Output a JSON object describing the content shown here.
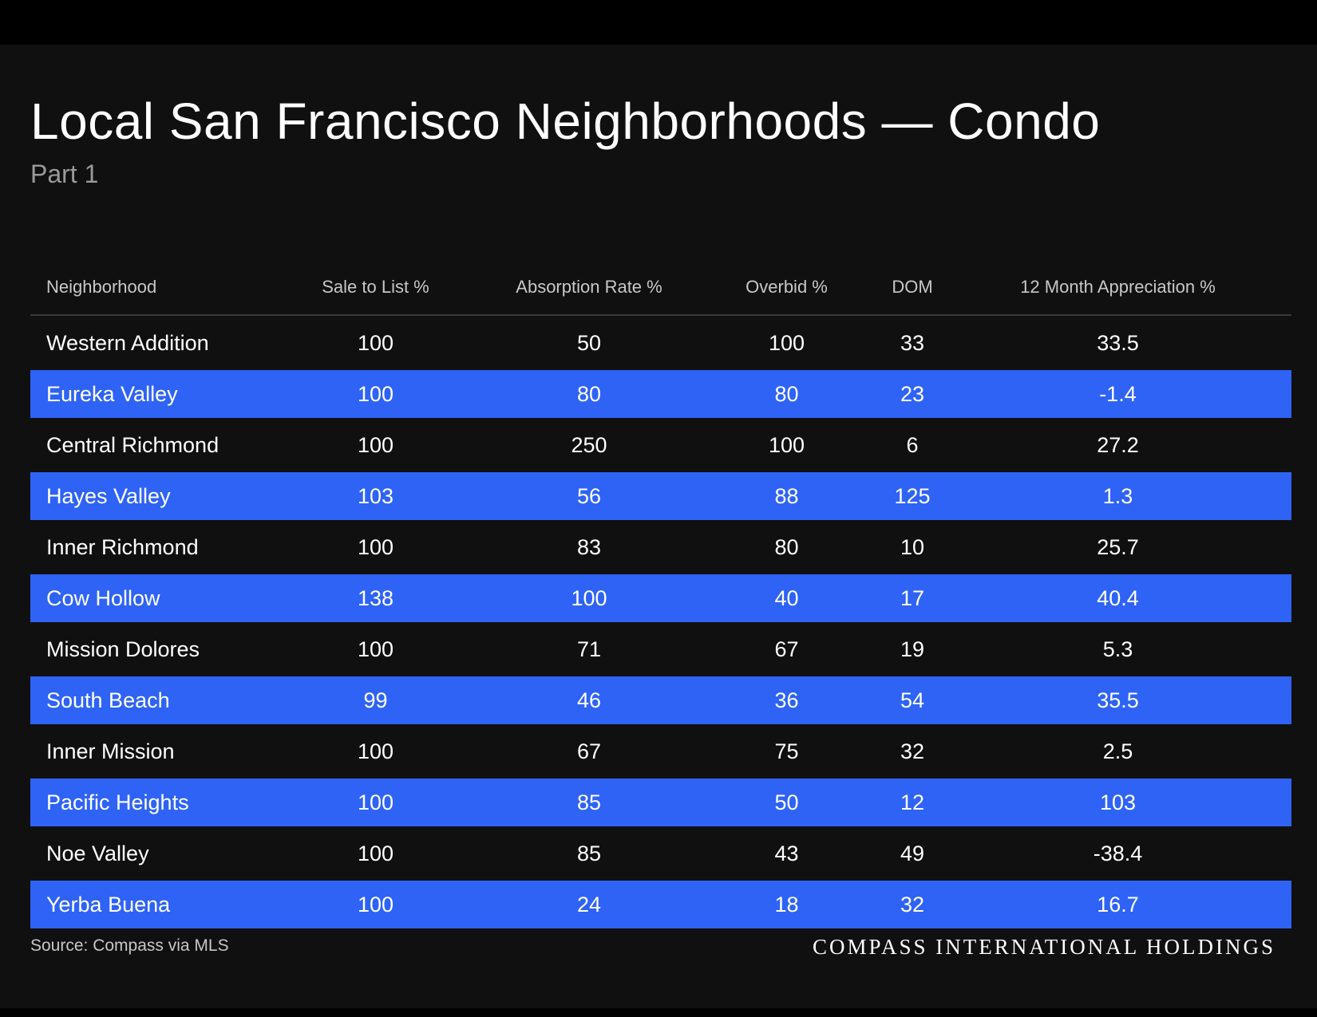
{
  "header": {
    "title": "Local San Francisco Neighborhoods — Condo",
    "subtitle": "Part 1"
  },
  "table": {
    "columns": [
      "Neighborhood",
      "Sale to List %",
      "Absorption Rate %",
      "Overbid %",
      "DOM",
      "12 Month Appreciation %"
    ],
    "rows": [
      {
        "name": "Western Addition",
        "sale_to_list": "100",
        "absorption": "50",
        "overbid": "100",
        "dom": "33",
        "appreciation": "33.5"
      },
      {
        "name": "Eureka Valley",
        "sale_to_list": "100",
        "absorption": "80",
        "overbid": "80",
        "dom": "23",
        "appreciation": "-1.4"
      },
      {
        "name": "Central Richmond",
        "sale_to_list": "100",
        "absorption": "250",
        "overbid": "100",
        "dom": "6",
        "appreciation": "27.2"
      },
      {
        "name": "Hayes Valley",
        "sale_to_list": "103",
        "absorption": "56",
        "overbid": "88",
        "dom": "125",
        "appreciation": "1.3"
      },
      {
        "name": "Inner Richmond",
        "sale_to_list": "100",
        "absorption": "83",
        "overbid": "80",
        "dom": "10",
        "appreciation": "25.7"
      },
      {
        "name": "Cow Hollow",
        "sale_to_list": "138",
        "absorption": "100",
        "overbid": "40",
        "dom": "17",
        "appreciation": "40.4"
      },
      {
        "name": "Mission Dolores",
        "sale_to_list": "100",
        "absorption": "71",
        "overbid": "67",
        "dom": "19",
        "appreciation": "5.3"
      },
      {
        "name": "South Beach",
        "sale_to_list": "99",
        "absorption": "46",
        "overbid": "36",
        "dom": "54",
        "appreciation": "35.5"
      },
      {
        "name": "Inner Mission",
        "sale_to_list": "100",
        "absorption": "67",
        "overbid": "75",
        "dom": "32",
        "appreciation": "2.5"
      },
      {
        "name": "Pacific Heights",
        "sale_to_list": "100",
        "absorption": "85",
        "overbid": "50",
        "dom": "12",
        "appreciation": "103"
      },
      {
        "name": "Noe Valley",
        "sale_to_list": "100",
        "absorption": "85",
        "overbid": "43",
        "dom": "49",
        "appreciation": "-38.4"
      },
      {
        "name": "Yerba Buena",
        "sale_to_list": "100",
        "absorption": "24",
        "overbid": "18",
        "dom": "32",
        "appreciation": "16.7"
      }
    ]
  },
  "footer": {
    "source": "Source: Compass via MLS",
    "brand": "COMPASS INTERNATIONAL HOLDINGS"
  },
  "colors": {
    "background": "#101010",
    "highlight_row": "#2f63f5",
    "text": "#ffffff",
    "muted": "#9a9a9a"
  }
}
